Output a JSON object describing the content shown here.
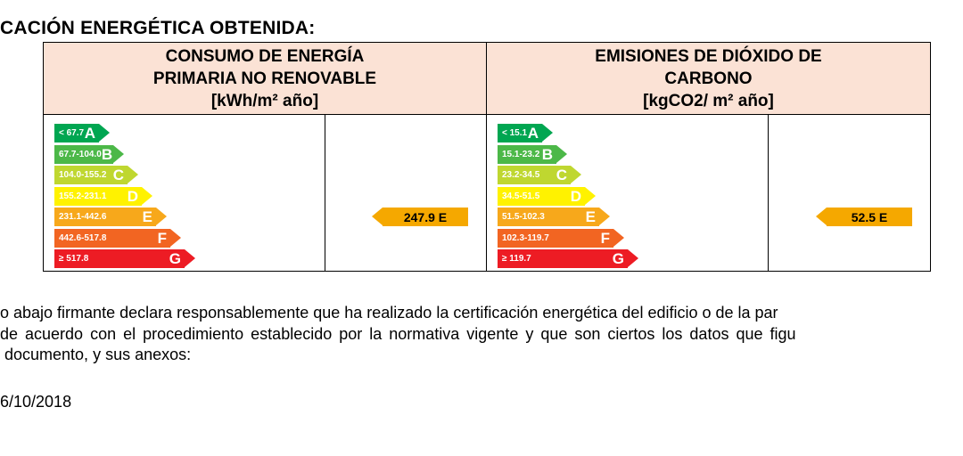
{
  "heading": "CACIÓN ENERGÉTICA OBTENIDA:",
  "colors": {
    "A": "#00a651",
    "B": "#4cb848",
    "C": "#bfd730",
    "D": "#fff200",
    "E": "#f7a81b",
    "F": "#f26522",
    "G": "#ed1c24",
    "indicator": "#f5a800",
    "header_bg": "#fbe2d5"
  },
  "consumo": {
    "title_line1": "CONSUMO DE ENERGÍA",
    "title_line2": "PRIMARIA NO RENOVABLE",
    "unit": "[kWh/m² año]",
    "scale": [
      {
        "range": "< 67.7",
        "letter": "A"
      },
      {
        "range": "67.7-104.0",
        "letter": "B"
      },
      {
        "range": "104.0-155.2",
        "letter": "C"
      },
      {
        "range": "155.2-231.1",
        "letter": "D"
      },
      {
        "range": "231.1-442.6",
        "letter": "E"
      },
      {
        "range": "442.6-517.8",
        "letter": "F"
      },
      {
        "range": "≥ 517.8",
        "letter": "G"
      }
    ],
    "rating_text": "247.9 E",
    "rating_letter": "E"
  },
  "emisiones": {
    "title_line1": "EMISIONES DE DIÓXIDO DE",
    "title_line2": "CARBONO",
    "unit": "[kgCO2/ m² año]",
    "scale": [
      {
        "range": "< 15.1",
        "letter": "A"
      },
      {
        "range": "15.1-23.2",
        "letter": "B"
      },
      {
        "range": "23.2-34.5",
        "letter": "C"
      },
      {
        "range": "34.5-51.5",
        "letter": "D"
      },
      {
        "range": "51.5-102.3",
        "letter": "E"
      },
      {
        "range": "102.3-119.7",
        "letter": "F"
      },
      {
        "range": "≥ 119.7",
        "letter": "G"
      }
    ],
    "rating_text": "52.5 E",
    "rating_letter": "E"
  },
  "declaration": {
    "line1": "o abajo firmante declara responsablemente que ha realizado la certificación energética del edificio o de la par",
    "line2": "de acuerdo con el procedimiento establecido por la normativa vigente y que son ciertos los datos que figu",
    "line3": " documento, y sus anexos:"
  },
  "date": "6/10/2018"
}
